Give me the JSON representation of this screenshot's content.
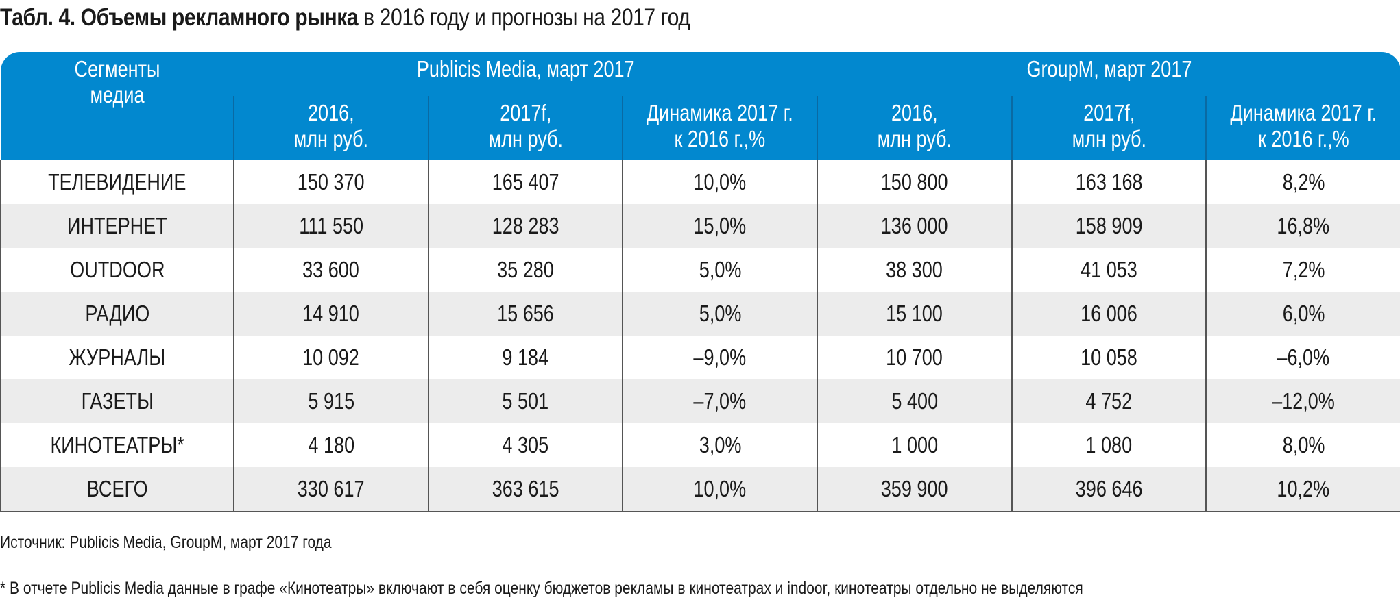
{
  "title": {
    "bold": "Табл. 4. Объемы рекламного рынка",
    "normal": " в 2016 году и прогнозы на 2017 год"
  },
  "header": {
    "segments": "Сегменты медиа",
    "groups": [
      "Publicis Media, март 2017",
      "GroupM, март 2017"
    ],
    "subcolumns": [
      [
        "2016,",
        "млн руб."
      ],
      [
        "2017f,",
        "млн руб."
      ],
      [
        "Динамика 2017 г.",
        "к 2016 г.,%"
      ],
      [
        "2016,",
        "млн руб."
      ],
      [
        "2017f,",
        "млн руб."
      ],
      [
        "Динамика 2017 г.",
        "к 2016 г.,%"
      ]
    ]
  },
  "rows": [
    [
      "ТЕЛЕВИДЕНИЕ",
      "150 370",
      "165 407",
      "10,0%",
      "150 800",
      "163 168",
      "8,2%"
    ],
    [
      "ИНТЕРНЕТ",
      "111 550",
      "128 283",
      "15,0%",
      "136 000",
      "158 909",
      "16,8%"
    ],
    [
      "OUTDOOR",
      "33 600",
      "35 280",
      "5,0%",
      "38 300",
      "41 053",
      "7,2%"
    ],
    [
      "РАДИО",
      "14 910",
      "15 656",
      "5,0%",
      "15 100",
      "16 006",
      "6,0%"
    ],
    [
      "ЖУРНАЛЫ",
      "10 092",
      "9 184",
      "–9,0%",
      "10 700",
      "10 058",
      "–6,0%"
    ],
    [
      "ГАЗЕТЫ",
      "5 915",
      "5 501",
      "–7,0%",
      "5 400",
      "4 752",
      "–12,0%"
    ],
    [
      "КИНОТЕАТРЫ*",
      "4 180",
      "4 305",
      "3,0%",
      "1 000",
      "1 080",
      "8,0%"
    ],
    [
      "ВСЕГО",
      "330 617",
      "363 615",
      "10,0%",
      "359 900",
      "396 646",
      "10,2%"
    ]
  ],
  "source": "Источник: Publicis Media, GroupM, март 2017 года",
  "footnote": "* В отчете Publicis Media данные в графе «Кинотеатры» включают в себя оценку бюджетов рекламы в кинотеатрах и indoor, кинотеатры отдельно не выделяются",
  "colors": {
    "header_bg": "#0288cf",
    "header_text": "#ffffff",
    "row_alt_bg": "#ececec",
    "grid": "#555555"
  }
}
